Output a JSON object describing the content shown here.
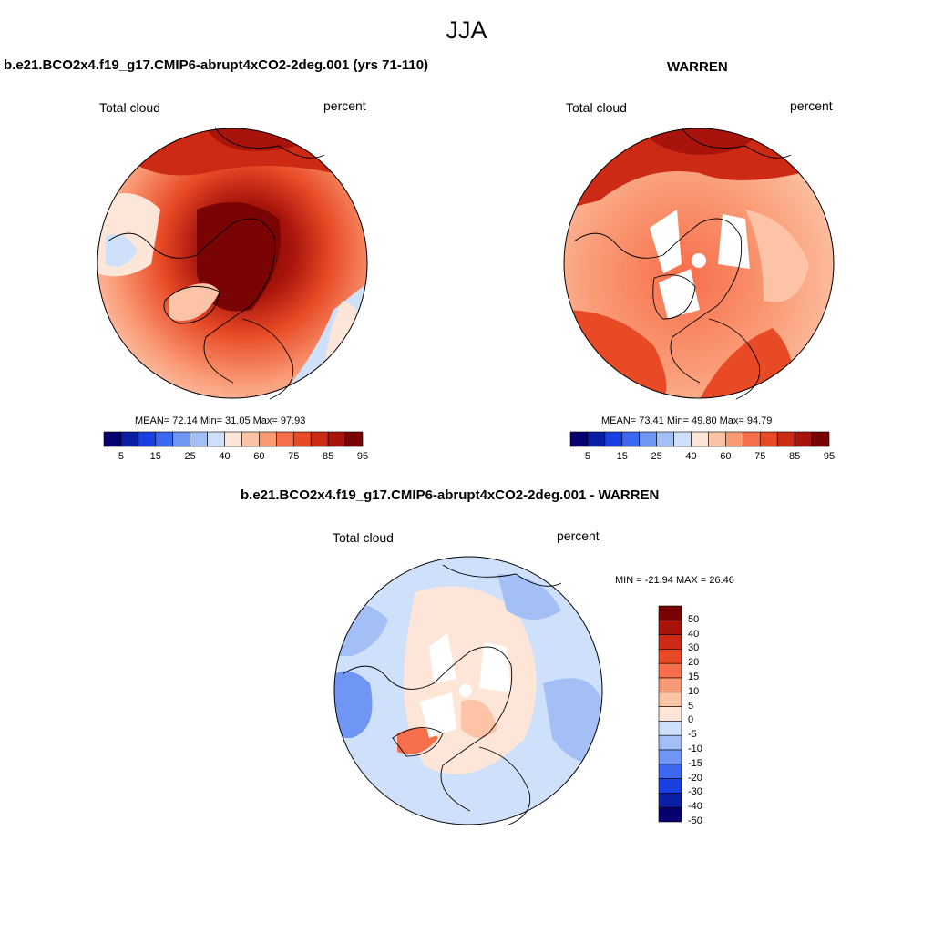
{
  "title": "JJA",
  "panels": [
    {
      "id": "model",
      "heading": "b.e21.BCO2x4.f19_g17.CMIP6-abrupt4xCO2-2deg.001 (yrs 71-110)",
      "left_label": "Total cloud",
      "right_label": "percent",
      "stats": "MEAN=  72.14  Min=  31.05  Max=  97.93",
      "colorbar": {
        "colors": [
          "#08006f",
          "#0a1fa3",
          "#1a3fe0",
          "#3a68f0",
          "#6f96f4",
          "#a4bff6",
          "#cfe0fa",
          "#fde6d8",
          "#fcc3a6",
          "#fa9a75",
          "#f76e4a",
          "#e84a26",
          "#cc2a14",
          "#a8140c",
          "#7a0403"
        ],
        "tick_labels": [
          "5",
          "15",
          "25",
          "40",
          "60",
          "75",
          "85",
          "95"
        ]
      }
    },
    {
      "id": "obs",
      "heading": "WARREN",
      "left_label": "Total cloud",
      "right_label": "percent",
      "stats": "MEAN=  73.41  Min=  49.80  Max=  94.79",
      "colorbar": {
        "colors": [
          "#08006f",
          "#0a1fa3",
          "#1a3fe0",
          "#3a68f0",
          "#6f96f4",
          "#a4bff6",
          "#cfe0fa",
          "#fde6d8",
          "#fcc3a6",
          "#fa9a75",
          "#f76e4a",
          "#e84a26",
          "#cc2a14",
          "#a8140c",
          "#7a0403"
        ],
        "tick_labels": [
          "5",
          "15",
          "25",
          "40",
          "60",
          "75",
          "85",
          "95"
        ]
      }
    },
    {
      "id": "diff",
      "heading": "b.e21.BCO2x4.f19_g17.CMIP6-abrupt4xCO2-2deg.001 - WARREN",
      "left_label": "Total cloud",
      "right_label": "percent",
      "stats": "MIN = -21.94 MAX =  26.46",
      "colorbar": {
        "colors": [
          "#7a0403",
          "#a8140c",
          "#cc2a14",
          "#e84a26",
          "#f76e4a",
          "#fa9a75",
          "#fcc3a6",
          "#fde6d8",
          "#cfe0fa",
          "#a4bff6",
          "#6f96f4",
          "#3a68f0",
          "#1a3fe0",
          "#0a1fa3",
          "#08006f"
        ],
        "tick_labels": [
          "50",
          "40",
          "30",
          "20",
          "15",
          "10",
          "5",
          "0",
          "-5",
          "-10",
          "-15",
          "-20",
          "-30",
          "-40",
          "-50"
        ]
      }
    }
  ]
}
